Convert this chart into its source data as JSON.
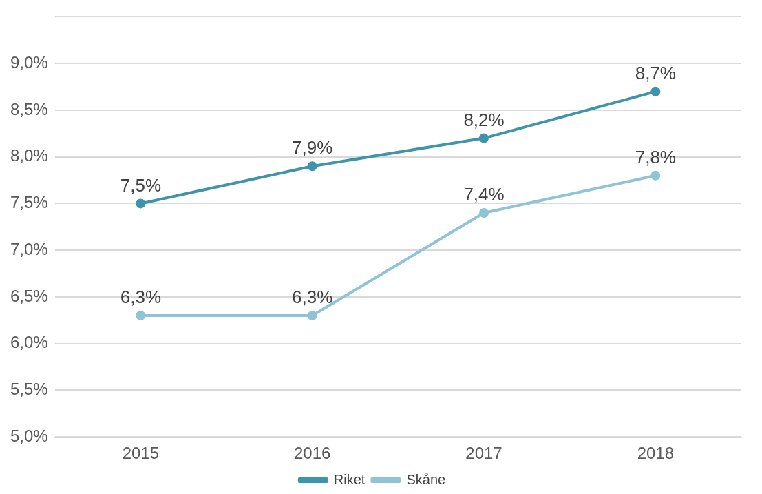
{
  "chart_data": {
    "type": "line",
    "categories": [
      "2015",
      "2016",
      "2017",
      "2018"
    ],
    "series": [
      {
        "name": "Riket",
        "color": "#3d94ab",
        "values": [
          7.5,
          7.9,
          8.2,
          8.7
        ],
        "value_labels": [
          "7,5%",
          "7,9%",
          "8,2%",
          "8,7%"
        ]
      },
      {
        "name": "Skåne",
        "color": "#8fc4d6",
        "values": [
          6.3,
          6.3,
          7.4,
          7.8
        ],
        "value_labels": [
          "6,3%",
          "6,3%",
          "7,4%",
          "7,8%"
        ]
      }
    ],
    "ylim": [
      5,
      9.5
    ],
    "yticks": [
      {
        "value": 5,
        "label": "5,0%"
      },
      {
        "value": 5.5,
        "label": "5,5%"
      },
      {
        "value": 6,
        "label": "6,0%"
      },
      {
        "value": 6.5,
        "label": "6,5%"
      },
      {
        "value": 7,
        "label": "7,0%"
      },
      {
        "value": 7.5,
        "label": "7,5%"
      },
      {
        "value": 8,
        "label": "8,0%"
      },
      {
        "value": 8.5,
        "label": "8,5%"
      },
      {
        "value": 9,
        "label": "9,0%"
      },
      {
        "value": 9.5,
        "label": null
      }
    ],
    "grid": "y",
    "legend": "bottom",
    "marker": "circle",
    "line_style": "solid"
  }
}
